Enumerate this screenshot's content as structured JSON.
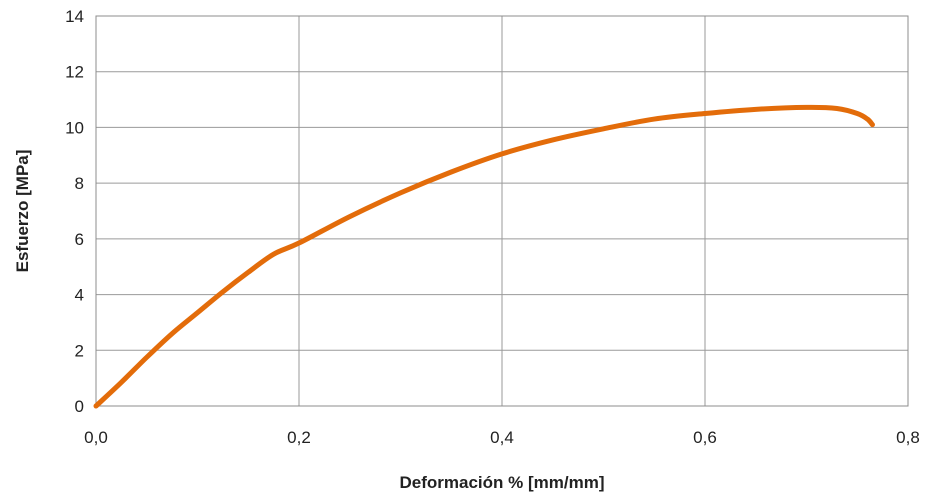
{
  "chart_data": {
    "type": "line",
    "title": "",
    "xlabel": "Deformación % [mm/mm]",
    "ylabel": "Esfuerzo [MPa]",
    "xlim": [
      0,
      0.8
    ],
    "ylim": [
      0,
      14
    ],
    "x_ticks": [
      "0,0",
      "0,2",
      "0,4",
      "0,6",
      "0,8"
    ],
    "y_ticks": [
      "0",
      "2",
      "4",
      "6",
      "8",
      "10",
      "12",
      "14"
    ],
    "grid": true,
    "legend": "none",
    "series": [
      {
        "color": "#E36C0A",
        "x": [
          0.0,
          0.025,
          0.05,
          0.075,
          0.1,
          0.125,
          0.15,
          0.175,
          0.2,
          0.25,
          0.3,
          0.35,
          0.4,
          0.45,
          0.5,
          0.55,
          0.6,
          0.65,
          0.7,
          0.73,
          0.75,
          0.76,
          0.765
        ],
        "y": [
          0.0,
          0.85,
          1.75,
          2.6,
          3.35,
          4.1,
          4.8,
          5.45,
          5.85,
          6.8,
          7.65,
          8.4,
          9.05,
          9.55,
          9.95,
          10.3,
          10.5,
          10.65,
          10.72,
          10.68,
          10.5,
          10.3,
          10.1
        ]
      }
    ]
  }
}
